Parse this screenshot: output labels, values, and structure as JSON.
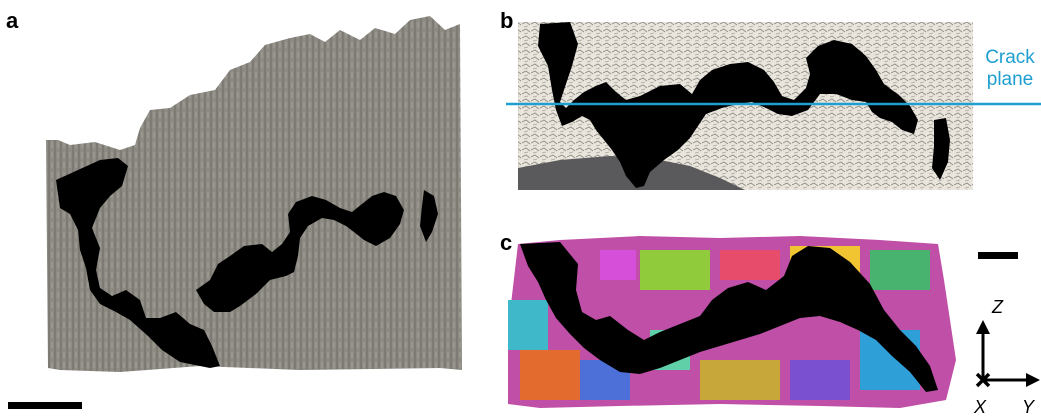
{
  "panels": {
    "a": {
      "label": "a"
    },
    "b": {
      "label": "b",
      "crack_plane_line1": "Crack",
      "crack_plane_line2": "plane"
    },
    "c": {
      "label": "c"
    }
  },
  "axes": {
    "z": "Z",
    "x": "X",
    "y": "Y"
  },
  "colors": {
    "surface_gray": "#8a8880",
    "crack_black": "#000000",
    "light_surface": "#e8e4da",
    "base_gray": "#5a5a5c",
    "crack_plane_line": "#1e9fd0"
  }
}
